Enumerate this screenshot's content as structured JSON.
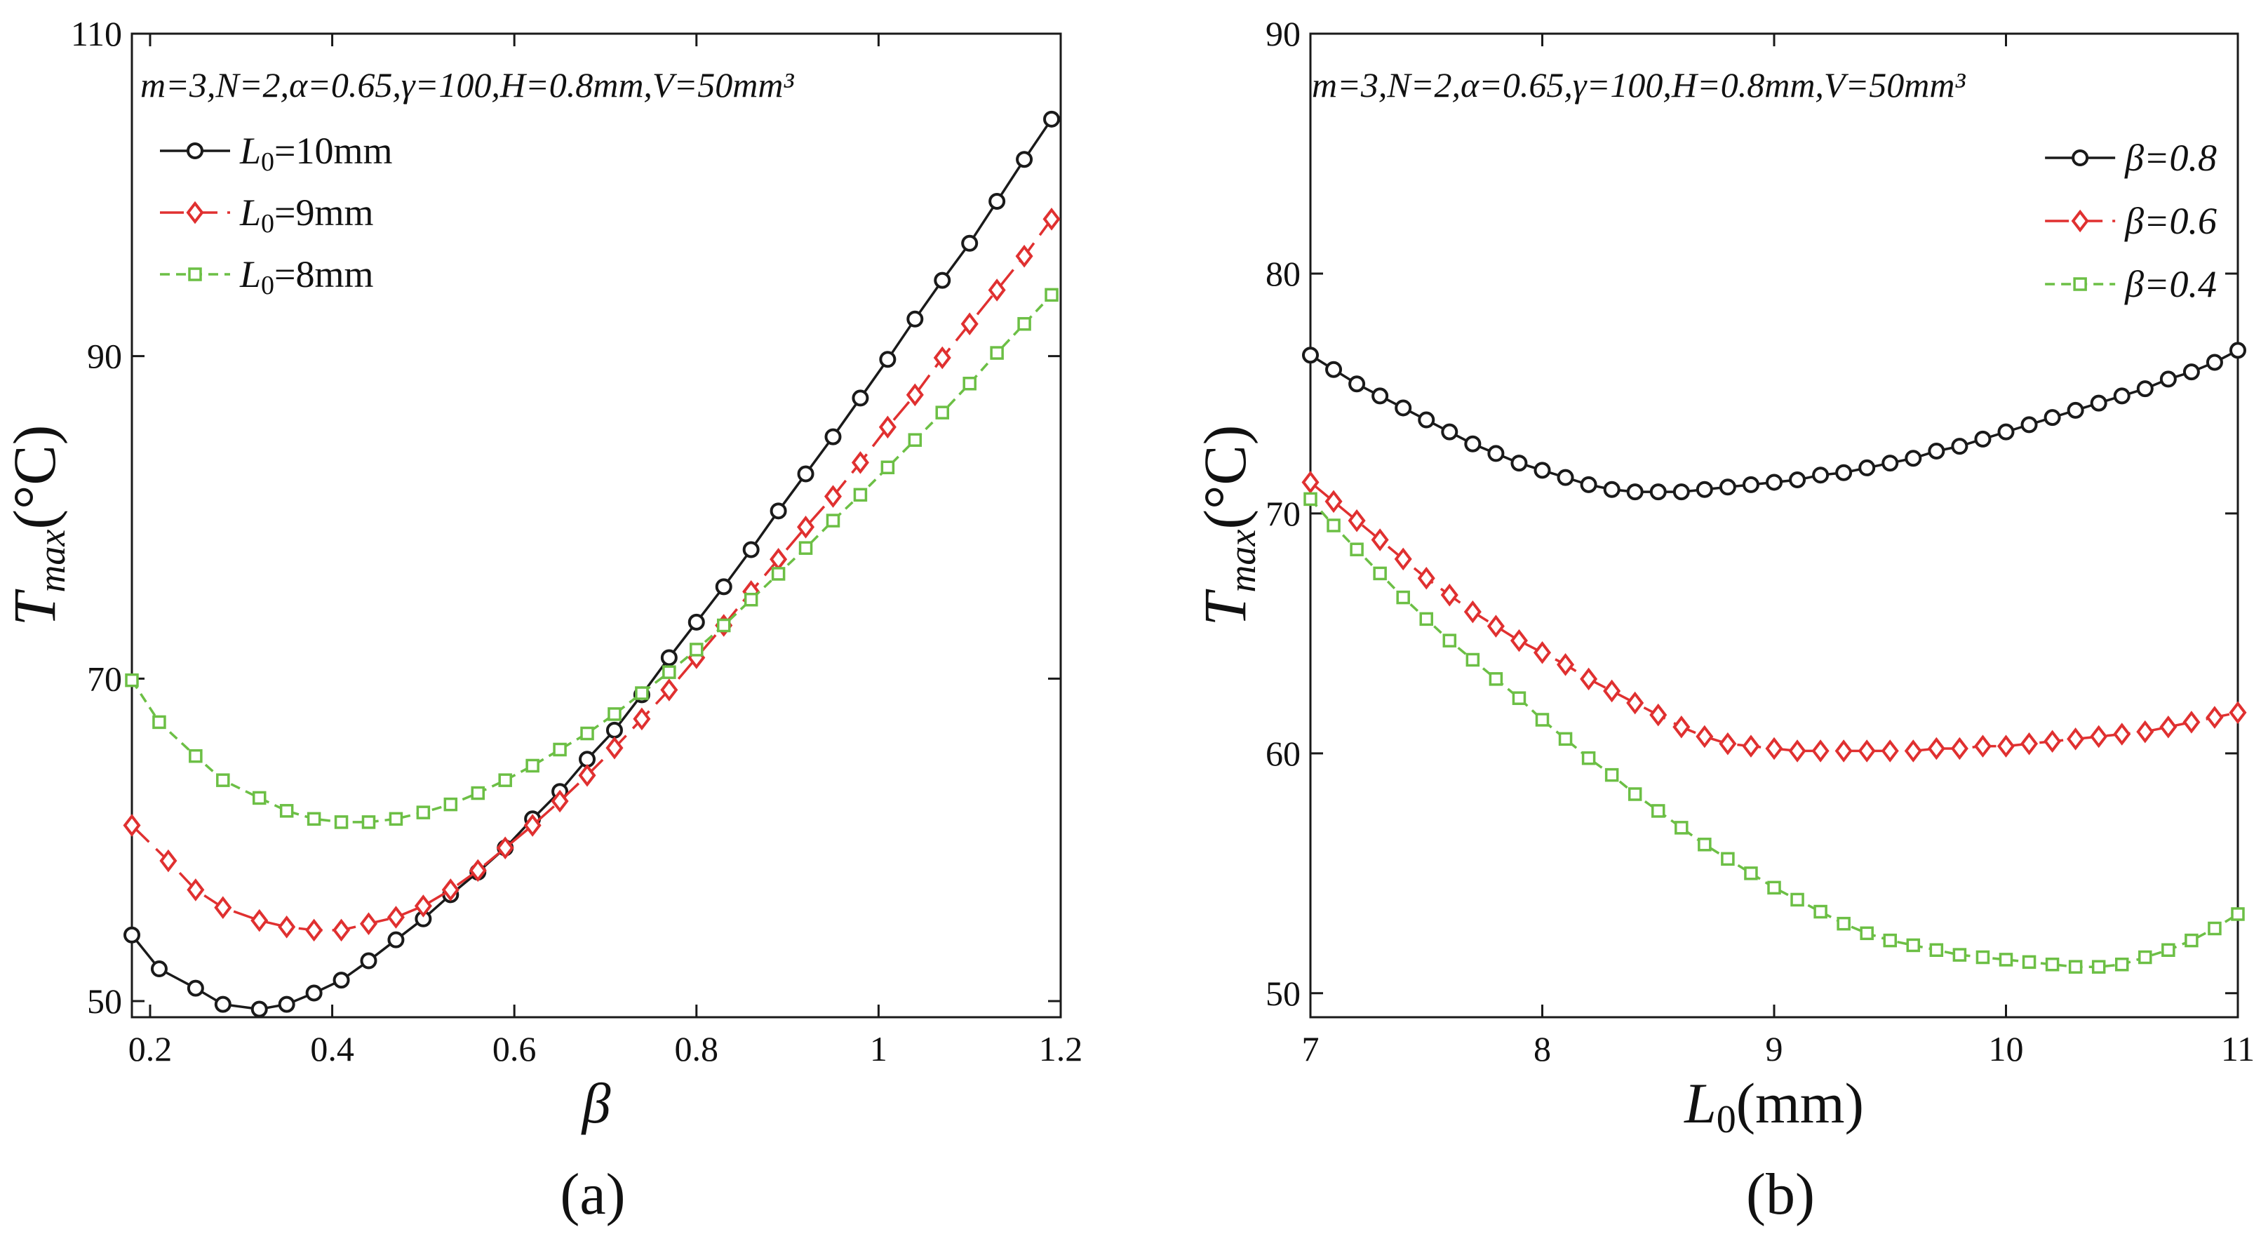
{
  "figure": {
    "panels": [
      "(a)",
      "(b)"
    ]
  },
  "chart_data": [
    {
      "type": "line",
      "panel_label": "(a)",
      "annotation": "m=3,N=2,α=0.65,γ=100,H=0.8mm,V=50mm³",
      "xlabel": "β",
      "ylabel": "Tmax(°C)",
      "xlim": [
        0.18,
        1.2
      ],
      "ylim": [
        49,
        110
      ],
      "xticks": [
        0.2,
        0.4,
        0.6,
        0.8,
        1,
        1.2
      ],
      "xtick_labels": [
        "0.2",
        "0.4",
        "0.6",
        "0.8",
        "1",
        "1.2"
      ],
      "yticks": [
        50,
        70,
        90,
        110
      ],
      "ytick_labels": [
        "50",
        "70",
        "90",
        "110"
      ],
      "legend_position": "top-left",
      "series": [
        {
          "name": "L0=10mm",
          "color": "#1a1a1a",
          "marker": "circle",
          "dash": "solid",
          "x": [
            0.18,
            0.21,
            0.25,
            0.28,
            0.32,
            0.35,
            0.38,
            0.41,
            0.44,
            0.47,
            0.5,
            0.53,
            0.56,
            0.59,
            0.62,
            0.65,
            0.68,
            0.71,
            0.74,
            0.77,
            0.8,
            0.83,
            0.86,
            0.89,
            0.92,
            0.95,
            0.98,
            1.01,
            1.04,
            1.07,
            1.1,
            1.13,
            1.16,
            1.19
          ],
          "y": [
            54.1,
            52.0,
            50.8,
            49.8,
            49.5,
            49.8,
            50.5,
            51.3,
            52.5,
            53.8,
            55.1,
            56.6,
            58.0,
            59.5,
            61.3,
            63.0,
            65.0,
            66.8,
            69.0,
            71.3,
            73.5,
            75.7,
            78.0,
            80.4,
            82.7,
            85.0,
            87.4,
            89.8,
            92.3,
            94.7,
            97.0,
            99.6,
            102.2,
            104.7
          ]
        },
        {
          "name": "L0=9mm",
          "color": "#e03030",
          "marker": "diamond",
          "dash": "long",
          "x": [
            0.18,
            0.22,
            0.25,
            0.28,
            0.32,
            0.35,
            0.38,
            0.41,
            0.44,
            0.47,
            0.5,
            0.53,
            0.56,
            0.59,
            0.62,
            0.65,
            0.68,
            0.71,
            0.74,
            0.77,
            0.8,
            0.83,
            0.86,
            0.89,
            0.92,
            0.95,
            0.98,
            1.01,
            1.04,
            1.07,
            1.1,
            1.13,
            1.16,
            1.19
          ],
          "y": [
            60.9,
            58.7,
            56.9,
            55.8,
            55.0,
            54.6,
            54.4,
            54.4,
            54.8,
            55.2,
            55.9,
            56.9,
            58.1,
            59.5,
            60.9,
            62.4,
            64.0,
            65.7,
            67.5,
            69.3,
            71.3,
            73.3,
            75.4,
            77.4,
            79.4,
            81.3,
            83.4,
            85.6,
            87.6,
            89.9,
            92.0,
            94.1,
            96.2,
            98.5
          ]
        },
        {
          "name": "L0=8mm",
          "color": "#6cbf45",
          "marker": "square",
          "dash": "short",
          "x": [
            0.18,
            0.21,
            0.25,
            0.28,
            0.32,
            0.35,
            0.38,
            0.41,
            0.44,
            0.47,
            0.5,
            0.53,
            0.56,
            0.59,
            0.62,
            0.65,
            0.68,
            0.71,
            0.74,
            0.77,
            0.8,
            0.83,
            0.86,
            0.89,
            0.92,
            0.95,
            0.98,
            1.01,
            1.04,
            1.07,
            1.1,
            1.13,
            1.16,
            1.19
          ],
          "y": [
            69.9,
            67.3,
            65.2,
            63.7,
            62.6,
            61.8,
            61.3,
            61.1,
            61.1,
            61.3,
            61.7,
            62.2,
            62.9,
            63.7,
            64.6,
            65.6,
            66.6,
            67.8,
            69.1,
            70.4,
            71.8,
            73.3,
            74.9,
            76.5,
            78.1,
            79.8,
            81.4,
            83.1,
            84.8,
            86.5,
            88.3,
            90.2,
            92.0,
            93.8
          ]
        }
      ]
    },
    {
      "type": "line",
      "panel_label": "(b)",
      "annotation": "m=3,N=2,α=0.65,γ=100,H=0.8mm,V=50mm³",
      "xlabel": "L0(mm)",
      "ylabel": "Tmax(°C)",
      "xlim": [
        7,
        11
      ],
      "ylim": [
        49,
        90
      ],
      "xticks": [
        7,
        8,
        9,
        10,
        11
      ],
      "xtick_labels": [
        "7",
        "8",
        "9",
        "10",
        "11"
      ],
      "yticks": [
        50,
        60,
        70,
        80,
        90
      ],
      "ytick_labels": [
        "50",
        "60",
        "70",
        "80",
        "90"
      ],
      "legend_position": "top-right",
      "series": [
        {
          "name": "β=0.8",
          "color": "#1a1a1a",
          "marker": "circle",
          "dash": "solid",
          "x": [
            7.0,
            7.1,
            7.2,
            7.3,
            7.4,
            7.5,
            7.6,
            7.7,
            7.8,
            7.9,
            8.0,
            8.1,
            8.2,
            8.3,
            8.4,
            8.5,
            8.6,
            8.7,
            8.8,
            8.9,
            9.0,
            9.1,
            9.2,
            9.3,
            9.4,
            9.5,
            9.6,
            9.7,
            9.8,
            9.9,
            10.0,
            10.1,
            10.2,
            10.3,
            10.4,
            10.5,
            10.6,
            10.7,
            10.8,
            10.9,
            11.0
          ],
          "y": [
            76.6,
            76.0,
            75.4,
            74.9,
            74.4,
            73.9,
            73.4,
            72.9,
            72.5,
            72.1,
            71.8,
            71.5,
            71.2,
            71.0,
            70.9,
            70.9,
            70.9,
            71.0,
            71.1,
            71.2,
            71.3,
            71.4,
            71.6,
            71.7,
            71.9,
            72.1,
            72.3,
            72.6,
            72.8,
            73.1,
            73.4,
            73.7,
            74.0,
            74.3,
            74.6,
            74.9,
            75.2,
            75.6,
            75.9,
            76.3,
            76.8
          ]
        },
        {
          "name": "β=0.6",
          "color": "#e03030",
          "marker": "diamond",
          "dash": "long",
          "x": [
            7.0,
            7.1,
            7.2,
            7.3,
            7.4,
            7.5,
            7.6,
            7.7,
            7.8,
            7.9,
            8.0,
            8.1,
            8.2,
            8.3,
            8.4,
            8.5,
            8.6,
            8.7,
            8.8,
            8.9,
            9.0,
            9.1,
            9.2,
            9.3,
            9.4,
            9.5,
            9.6,
            9.7,
            9.8,
            9.9,
            10.0,
            10.1,
            10.2,
            10.3,
            10.4,
            10.5,
            10.6,
            10.7,
            10.8,
            10.9,
            11.0
          ],
          "y": [
            71.3,
            70.5,
            69.7,
            68.9,
            68.1,
            67.3,
            66.6,
            65.9,
            65.3,
            64.7,
            64.2,
            63.7,
            63.1,
            62.6,
            62.1,
            61.6,
            61.1,
            60.7,
            60.4,
            60.3,
            60.2,
            60.1,
            60.1,
            60.1,
            60.1,
            60.1,
            60.1,
            60.2,
            60.2,
            60.3,
            60.3,
            60.4,
            60.5,
            60.6,
            60.7,
            60.8,
            60.9,
            61.1,
            61.3,
            61.5,
            61.7
          ]
        },
        {
          "name": "β=0.4",
          "color": "#6cbf45",
          "marker": "square",
          "dash": "short",
          "x": [
            7.0,
            7.1,
            7.2,
            7.3,
            7.4,
            7.5,
            7.6,
            7.7,
            7.8,
            7.9,
            8.0,
            8.1,
            8.2,
            8.3,
            8.4,
            8.5,
            8.6,
            8.7,
            8.8,
            8.9,
            9.0,
            9.1,
            9.2,
            9.3,
            9.4,
            9.5,
            9.6,
            9.7,
            9.8,
            9.9,
            10.0,
            10.1,
            10.2,
            10.3,
            10.4,
            10.5,
            10.6,
            10.7,
            10.8,
            10.9,
            11.0
          ],
          "y": [
            70.6,
            69.5,
            68.5,
            67.5,
            66.5,
            65.6,
            64.7,
            63.9,
            63.1,
            62.3,
            61.4,
            60.6,
            59.8,
            59.1,
            58.3,
            57.6,
            56.9,
            56.2,
            55.6,
            55.0,
            54.4,
            53.9,
            53.4,
            52.9,
            52.5,
            52.2,
            52.0,
            51.8,
            51.6,
            51.5,
            51.4,
            51.3,
            51.2,
            51.1,
            51.1,
            51.2,
            51.5,
            51.8,
            52.2,
            52.7,
            53.3
          ]
        }
      ]
    }
  ]
}
